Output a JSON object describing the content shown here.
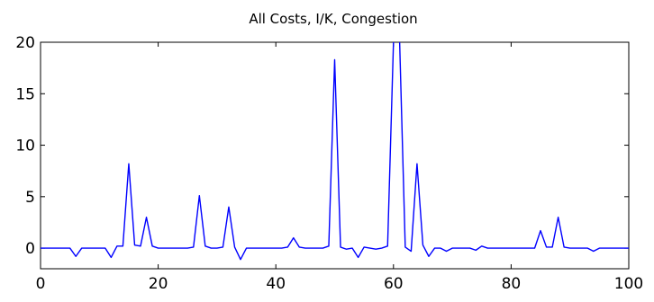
{
  "chart_data": {
    "type": "line",
    "title": "All Costs, I/K, Congestion",
    "xlabel": "",
    "ylabel": "",
    "xlim": [
      0,
      100
    ],
    "ylim": [
      -2,
      20
    ],
    "xticks": [
      0,
      20,
      40,
      60,
      80,
      100
    ],
    "yticks": [
      0,
      5,
      10,
      15,
      20
    ],
    "grid": false,
    "series": [
      {
        "color": "#0000ff",
        "x": [
          0,
          1,
          2,
          3,
          4,
          5,
          6,
          7,
          8,
          9,
          10,
          11,
          12,
          13,
          14,
          15,
          16,
          17,
          18,
          19,
          20,
          21,
          22,
          23,
          24,
          25,
          26,
          27,
          28,
          29,
          30,
          31,
          32,
          33,
          34,
          35,
          36,
          37,
          38,
          39,
          40,
          41,
          42,
          43,
          44,
          45,
          46,
          47,
          48,
          49,
          50,
          51,
          52,
          53,
          54,
          55,
          56,
          57,
          58,
          59,
          60,
          61,
          62,
          63,
          64,
          65,
          66,
          67,
          68,
          69,
          70,
          71,
          72,
          73,
          74,
          75,
          76,
          77,
          78,
          79,
          80,
          81,
          82,
          83,
          84,
          85,
          86,
          87,
          88,
          89,
          90,
          91,
          92,
          93,
          94,
          95,
          96,
          97,
          98,
          99,
          100
        ],
        "y": [
          0,
          0,
          0,
          0,
          0,
          0,
          -0.8,
          0,
          0,
          0,
          0,
          0,
          -0.9,
          0.2,
          0.2,
          8.2,
          0.3,
          0.2,
          3.0,
          0.2,
          0,
          0,
          0,
          0,
          0,
          0,
          0.1,
          5.1,
          0.2,
          0,
          0,
          0.1,
          4.0,
          0.1,
          -1.1,
          0,
          0,
          0,
          0,
          0,
          0,
          0,
          0.1,
          1.0,
          0.1,
          0,
          0,
          0,
          0,
          0.2,
          18.3,
          0.1,
          -0.1,
          0,
          -0.9,
          0.1,
          0,
          -0.1,
          0,
          0.2,
          20,
          21,
          0.1,
          -0.3,
          8.2,
          0.3,
          -0.8,
          0,
          0,
          -0.3,
          0,
          0,
          0,
          0,
          -0.2,
          0.2,
          0,
          0,
          0,
          0,
          0,
          0,
          0,
          0,
          0,
          1.7,
          0.1,
          0.1,
          3.0,
          0.1,
          0,
          0,
          0,
          0,
          -0.3,
          0,
          0,
          0,
          0,
          0,
          0
        ]
      }
    ]
  }
}
